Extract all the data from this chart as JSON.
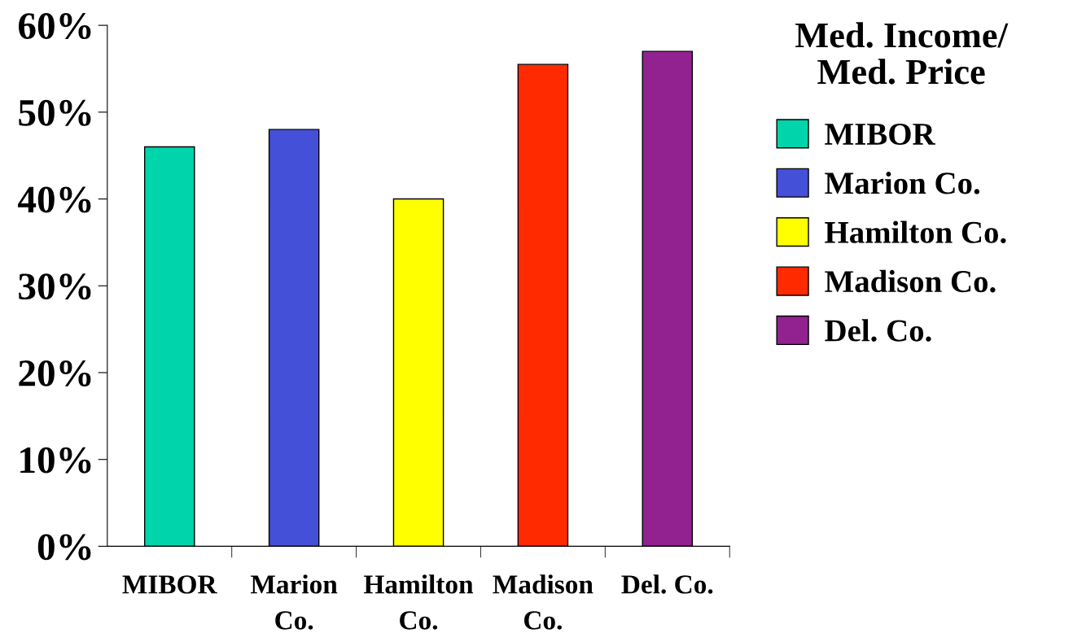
{
  "chart_data": {
    "type": "bar",
    "title": "Med. Income/\nMed. Price",
    "categories": [
      "MIBOR",
      "Marion\nCo.",
      "Hamilton\nCo.",
      "Madison\nCo.",
      "Del. Co."
    ],
    "series": [
      {
        "name": "MIBOR",
        "color": "#00d4aa",
        "values": [
          46,
          null,
          null,
          null,
          null
        ]
      },
      {
        "name": "Marion Co.",
        "color": "#4450d8",
        "values": [
          null,
          48,
          null,
          null,
          null
        ]
      },
      {
        "name": "Hamilton Co.",
        "color": "#ffff00",
        "values": [
          null,
          null,
          40,
          null,
          null
        ]
      },
      {
        "name": "Madison Co.",
        "color": "#ff2a00",
        "values": [
          null,
          null,
          null,
          55.5,
          null
        ]
      },
      {
        "name": "Del. Co.",
        "color": "#922290",
        "values": [
          null,
          null,
          null,
          null,
          57
        ]
      }
    ],
    "ylim": [
      0,
      60
    ],
    "yticks": [
      {
        "value": 0,
        "label": "0%"
      },
      {
        "value": 10,
        "label": "10%"
      },
      {
        "value": 20,
        "label": "20%"
      },
      {
        "value": 30,
        "label": "30%"
      },
      {
        "value": 40,
        "label": "40%"
      },
      {
        "value": 50,
        "label": "50%"
      },
      {
        "value": 60,
        "label": "60%"
      }
    ],
    "grid": false,
    "legend": "right"
  }
}
